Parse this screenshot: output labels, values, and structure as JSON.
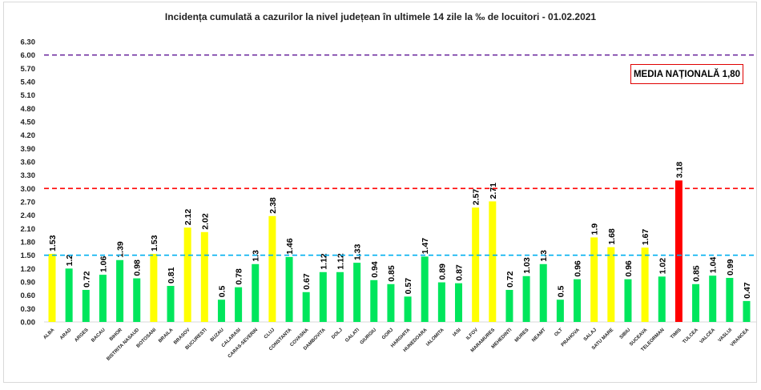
{
  "chart_data": {
    "type": "bar",
    "title": "Incidența cumulată a cazurilor la nivel județean în ultimele 14 zile la ‰ de locuitori - 01.02.2021",
    "categories": [
      "ALBA",
      "ARAD",
      "ARGES",
      "BACAU",
      "BIHOR",
      "BISTRITA NASAUD",
      "BOTOSANI",
      "BRAILA",
      "BRASOV",
      "BUCURESTI",
      "BUZAU",
      "CALARASI",
      "CARAS-SEVERIN",
      "CLUJ",
      "CONSTANTA",
      "COVASNA",
      "DAMBOVITA",
      "DOLJ",
      "GALATI",
      "GIURGIU",
      "GORJ",
      "HARGHITA",
      "HUNEDOARA",
      "IALOMITA",
      "IASI",
      "ILFOV",
      "MARAMURES",
      "MEHEDINTI",
      "MURES",
      "NEAMT",
      "OLT",
      "PRAHOVA",
      "SALAJ",
      "SATU MARE",
      "SIBIU",
      "SUCEAVA",
      "TELEORMAN",
      "TIMIS",
      "TULCEA",
      "VALCEA",
      "VASLUI",
      "VRANCEA"
    ],
    "values": [
      1.53,
      1.2,
      0.72,
      1.06,
      1.39,
      0.98,
      1.53,
      0.81,
      2.12,
      2.02,
      0.5,
      0.78,
      1.3,
      2.38,
      1.46,
      0.67,
      1.12,
      1.12,
      1.33,
      0.94,
      0.85,
      0.57,
      1.47,
      0.89,
      0.87,
      2.57,
      2.71,
      0.72,
      1.03,
      1.3,
      0.5,
      0.96,
      1.9,
      1.68,
      0.96,
      1.67,
      1.02,
      3.18,
      0.85,
      1.04,
      0.99,
      0.47
    ],
    "value_labels": [
      "1.53",
      "1.2",
      "0.72",
      "1.06",
      "1.39",
      "0.98",
      "1.53",
      "0.81",
      "2.12",
      "2.02",
      "0.5",
      "0.78",
      "1.3",
      "2.38",
      "1.46",
      "0.67",
      "1.12",
      "1.12",
      "1.33",
      "0.94",
      "0.85",
      "0.57",
      "1.47",
      "0.89",
      "0.87",
      "2.57",
      "2.71",
      "0.72",
      "1.03",
      "1.3",
      "0.5",
      "0.96",
      "1.9",
      "1.68",
      "0.96",
      "1.67",
      "1.02",
      "3.18",
      "0.85",
      "1.04",
      "0.99",
      "0.47"
    ],
    "ylim": [
      0,
      6.3
    ],
    "yticks": [
      "0.00",
      "0.30",
      "0.60",
      "0.90",
      "1.20",
      "1.50",
      "1.80",
      "2.10",
      "2.40",
      "2.70",
      "3.00",
      "3.30",
      "3.60",
      "3.90",
      "4.20",
      "4.50",
      "4.80",
      "5.10",
      "5.40",
      "5.70",
      "6.00",
      "6.30"
    ],
    "grid": false,
    "reference_lines": [
      {
        "value": 6.0,
        "color": "#7030a0",
        "style": "dashed"
      },
      {
        "value": 3.0,
        "color": "#ff0000",
        "style": "dashed"
      },
      {
        "value": 1.5,
        "color": "#00b0f0",
        "style": "dashed"
      }
    ],
    "bar_colors": {
      "below_1_5": "#00e65c",
      "between_1_5_and_3": "#ffff00",
      "above_3": "#ff0000"
    },
    "legend": {
      "text": "MEDIA NAȚIONALĂ 1,80",
      "placement": "top-right",
      "border_color": "#e00000"
    }
  }
}
